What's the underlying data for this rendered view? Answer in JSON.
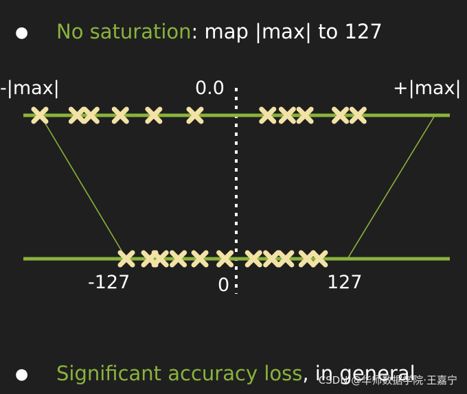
{
  "bullet1": {
    "highlight": "No saturation",
    "rest": ": map |max| to 127"
  },
  "bullet2": {
    "highlight": "Significant accuracy loss",
    "rest": ", in general"
  },
  "labels": {
    "neg_max": "-|max|",
    "zero_top": "0.0",
    "pos_max": "+|max|",
    "neg_127": "-127",
    "zero_bottom": "0",
    "pos_127": "127"
  },
  "watermark": "CSDN @华师数据学院·王嘉宁",
  "colors": {
    "background": "#1f1f1f",
    "line_green": "#8ab33d",
    "marker_fill": "#f3e2a6",
    "text": "#ffffff"
  },
  "chart_data": {
    "type": "diagram",
    "description_source": "quantization mapping diagram",
    "top_axis": {
      "range_labels": [
        "-|max|",
        "0.0",
        "+|max|"
      ],
      "points": [
        -1.0,
        -0.81,
        -0.74,
        -0.59,
        -0.42,
        -0.21,
        0.16,
        0.26,
        0.35,
        0.53,
        0.62
      ]
    },
    "bottom_axis": {
      "range_labels": [
        "-127",
        "0",
        "127"
      ],
      "points": [
        -127,
        -100,
        -88,
        -67,
        -42,
        -13,
        20,
        41,
        57,
        82,
        96
      ]
    }
  }
}
